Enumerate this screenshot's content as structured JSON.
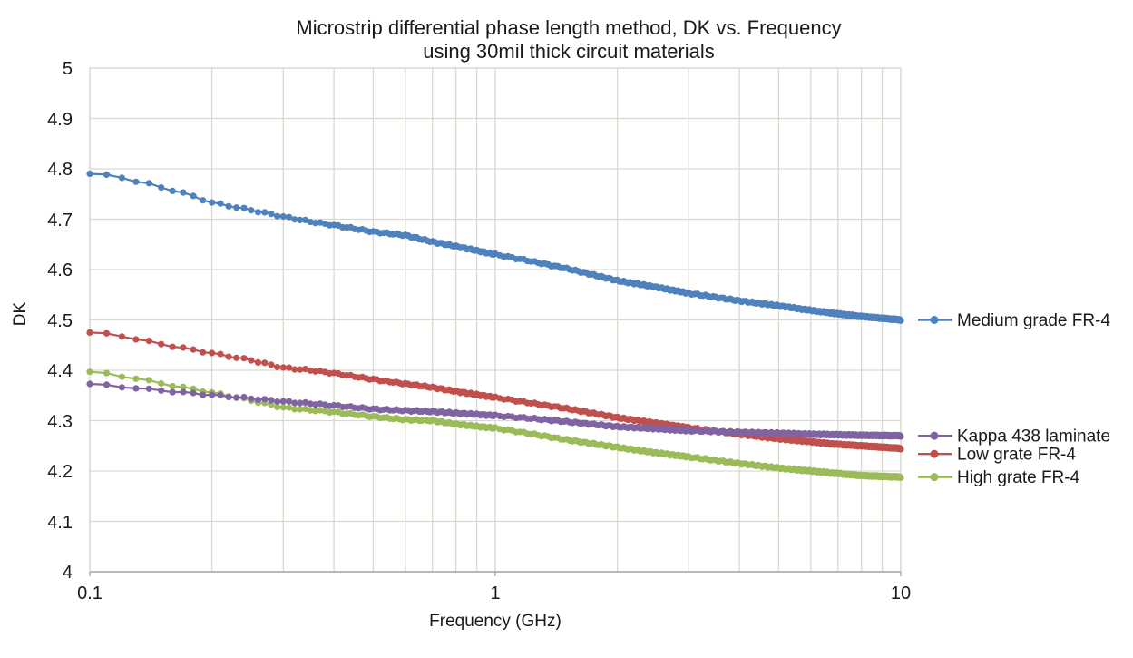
{
  "title": {
    "line1": "Microstrip differential phase length method, DK vs. Frequency",
    "line2": "using 30mil thick circuit materials"
  },
  "axes": {
    "x": {
      "label": "Frequency (GHz)",
      "scale": "log",
      "ticks": [
        {
          "value": 0.1,
          "label": "0.1"
        },
        {
          "value": 1,
          "label": "1"
        },
        {
          "value": 10,
          "label": "10"
        }
      ]
    },
    "y": {
      "label": "DK",
      "min": 4,
      "max": 5,
      "ticks": [
        "5",
        "4.9",
        "4.8",
        "4.7",
        "4.6",
        "4.5",
        "4.4",
        "4.3",
        "4.2",
        "4.1",
        "4"
      ]
    }
  },
  "colors": {
    "background": "#ffffff",
    "grid": "#d9d9d0",
    "axis": "#a6a6a6",
    "text": "#1a1a1a",
    "series_blue": "#4F81BD",
    "series_red": "#C0504D",
    "series_green": "#9BBB59",
    "series_purple": "#8064A2"
  },
  "chart_data": {
    "type": "line",
    "x_scale": "log",
    "xlim": [
      0.1,
      10
    ],
    "ylim": [
      4,
      5
    ],
    "grid": true,
    "legend_position": "right-of-line-ends",
    "xlabel": "Frequency (GHz)",
    "ylabel": "DK",
    "series": [
      {
        "name": "Medium grade FR-4",
        "color": "#4F81BD",
        "points": [
          [
            0.1,
            4.79
          ],
          [
            0.11,
            4.787
          ],
          [
            0.12,
            4.783
          ],
          [
            0.13,
            4.775
          ],
          [
            0.14,
            4.77
          ],
          [
            0.15,
            4.763
          ],
          [
            0.17,
            4.752
          ],
          [
            0.2,
            4.733
          ],
          [
            0.25,
            4.718
          ],
          [
            0.3,
            4.705
          ],
          [
            0.35,
            4.695
          ],
          [
            0.4,
            4.688
          ],
          [
            0.5,
            4.675
          ],
          [
            0.6,
            4.668
          ],
          [
            0.7,
            4.655
          ],
          [
            0.8,
            4.646
          ],
          [
            1.0,
            4.63
          ],
          [
            1.2,
            4.618
          ],
          [
            1.5,
            4.602
          ],
          [
            2.0,
            4.578
          ],
          [
            2.5,
            4.565
          ],
          [
            3.0,
            4.553
          ],
          [
            4.0,
            4.538
          ],
          [
            5.0,
            4.528
          ],
          [
            6.0,
            4.519
          ],
          [
            7.0,
            4.512
          ],
          [
            8.0,
            4.507
          ],
          [
            10.0,
            4.5
          ]
        ]
      },
      {
        "name": "Low grate FR-4",
        "color": "#C0504D",
        "points": [
          [
            0.1,
            4.475
          ],
          [
            0.11,
            4.472
          ],
          [
            0.12,
            4.468
          ],
          [
            0.13,
            4.462
          ],
          [
            0.14,
            4.457
          ],
          [
            0.15,
            4.452
          ],
          [
            0.17,
            4.444
          ],
          [
            0.2,
            4.434
          ],
          [
            0.25,
            4.42
          ],
          [
            0.3,
            4.405
          ],
          [
            0.35,
            4.4
          ],
          [
            0.4,
            4.394
          ],
          [
            0.5,
            4.382
          ],
          [
            0.6,
            4.373
          ],
          [
            0.7,
            4.366
          ],
          [
            0.8,
            4.358
          ],
          [
            1.0,
            4.346
          ],
          [
            1.2,
            4.336
          ],
          [
            1.5,
            4.324
          ],
          [
            2.0,
            4.306
          ],
          [
            2.5,
            4.295
          ],
          [
            3.0,
            4.286
          ],
          [
            4.0,
            4.273
          ],
          [
            5.0,
            4.264
          ],
          [
            6.0,
            4.258
          ],
          [
            7.0,
            4.253
          ],
          [
            8.0,
            4.25
          ],
          [
            10.0,
            4.245
          ]
        ]
      },
      {
        "name": "High grate FR-4",
        "color": "#9BBB59",
        "points": [
          [
            0.1,
            4.397
          ],
          [
            0.11,
            4.393
          ],
          [
            0.12,
            4.388
          ],
          [
            0.13,
            4.384
          ],
          [
            0.14,
            4.379
          ],
          [
            0.15,
            4.374
          ],
          [
            0.17,
            4.366
          ],
          [
            0.2,
            4.356
          ],
          [
            0.25,
            4.34
          ],
          [
            0.3,
            4.326
          ],
          [
            0.35,
            4.321
          ],
          [
            0.4,
            4.317
          ],
          [
            0.5,
            4.308
          ],
          [
            0.6,
            4.302
          ],
          [
            0.7,
            4.3
          ],
          [
            0.8,
            4.293
          ],
          [
            1.0,
            4.285
          ],
          [
            1.2,
            4.275
          ],
          [
            1.5,
            4.262
          ],
          [
            2.0,
            4.247
          ],
          [
            2.5,
            4.236
          ],
          [
            3.0,
            4.228
          ],
          [
            4.0,
            4.215
          ],
          [
            5.0,
            4.206
          ],
          [
            6.0,
            4.2
          ],
          [
            7.0,
            4.195
          ],
          [
            8.0,
            4.191
          ],
          [
            10.0,
            4.188
          ]
        ]
      },
      {
        "name": "Kappa 438 laminate",
        "color": "#8064A2",
        "points": [
          [
            0.1,
            4.373
          ],
          [
            0.11,
            4.37
          ],
          [
            0.12,
            4.367
          ],
          [
            0.13,
            4.365
          ],
          [
            0.14,
            4.362
          ],
          [
            0.15,
            4.36
          ],
          [
            0.17,
            4.356
          ],
          [
            0.2,
            4.351
          ],
          [
            0.25,
            4.344
          ],
          [
            0.3,
            4.338
          ],
          [
            0.35,
            4.334
          ],
          [
            0.4,
            4.33
          ],
          [
            0.5,
            4.323
          ],
          [
            0.6,
            4.32
          ],
          [
            0.7,
            4.318
          ],
          [
            0.8,
            4.315
          ],
          [
            1.0,
            4.31
          ],
          [
            1.2,
            4.305
          ],
          [
            1.5,
            4.298
          ],
          [
            2.0,
            4.288
          ],
          [
            2.5,
            4.284
          ],
          [
            3.0,
            4.28
          ],
          [
            4.0,
            4.277
          ],
          [
            5.0,
            4.275
          ],
          [
            6.0,
            4.273
          ],
          [
            7.0,
            4.272
          ],
          [
            8.0,
            4.271
          ],
          [
            10.0,
            4.27
          ]
        ]
      }
    ]
  }
}
